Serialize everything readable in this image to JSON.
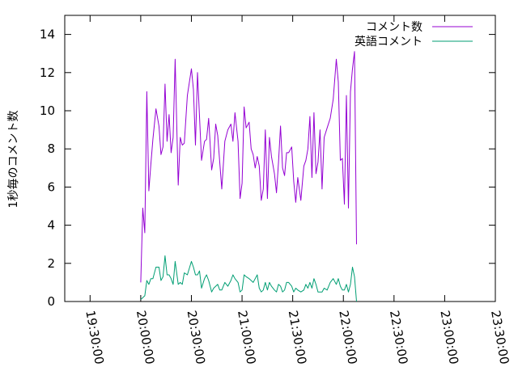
{
  "chart_data": {
    "type": "line",
    "title": "",
    "xlabel": "",
    "ylabel": "1秒毎のコメント数",
    "ylim": [
      0,
      15
    ],
    "yticks": [
      0,
      2,
      4,
      6,
      8,
      10,
      12,
      14
    ],
    "xticks": [
      "19:30:00",
      "20:00:00",
      "20:30:00",
      "21:00:00",
      "21:30:00",
      "22:00:00",
      "22:30:00",
      "23:00:00",
      "23:30:00"
    ],
    "xtick_hours": [
      19.5,
      20.0,
      20.5,
      21.0,
      21.5,
      22.0,
      22.5,
      23.0,
      23.5
    ],
    "xlim_hours": [
      19.25,
      23.5
    ],
    "legend_position": "top-right",
    "grid": false,
    "series": [
      {
        "name": "コメント数",
        "color": "#9400d3",
        "points": [
          [
            20.0,
            1.0
          ],
          [
            20.02,
            4.9
          ],
          [
            20.04,
            3.6
          ],
          [
            20.06,
            11.0
          ],
          [
            20.08,
            5.8
          ],
          [
            20.1,
            7.2
          ],
          [
            20.12,
            8.5
          ],
          [
            20.15,
            10.1
          ],
          [
            20.18,
            9.2
          ],
          [
            20.2,
            7.7
          ],
          [
            20.22,
            8.1
          ],
          [
            20.24,
            11.4
          ],
          [
            20.26,
            8.4
          ],
          [
            20.28,
            9.8
          ],
          [
            20.3,
            7.8
          ],
          [
            20.32,
            8.6
          ],
          [
            20.34,
            12.7
          ],
          [
            20.37,
            6.1
          ],
          [
            20.39,
            8.6
          ],
          [
            20.41,
            8.2
          ],
          [
            20.43,
            8.3
          ],
          [
            20.46,
            10.8
          ],
          [
            20.5,
            12.2
          ],
          [
            20.52,
            11.1
          ],
          [
            20.54,
            8.2
          ],
          [
            20.56,
            12.0
          ],
          [
            20.58,
            9.7
          ],
          [
            20.6,
            7.4
          ],
          [
            20.63,
            8.4
          ],
          [
            20.65,
            8.5
          ],
          [
            20.67,
            9.6
          ],
          [
            20.7,
            6.9
          ],
          [
            20.72,
            7.5
          ],
          [
            20.74,
            9.3
          ],
          [
            20.76,
            8.7
          ],
          [
            20.78,
            7.3
          ],
          [
            20.8,
            5.9
          ],
          [
            20.83,
            8.4
          ],
          [
            20.86,
            9.0
          ],
          [
            20.89,
            9.3
          ],
          [
            20.91,
            8.4
          ],
          [
            20.93,
            9.9
          ],
          [
            20.96,
            8.4
          ],
          [
            20.98,
            5.4
          ],
          [
            21.0,
            6.2
          ],
          [
            21.02,
            10.2
          ],
          [
            21.04,
            9.1
          ],
          [
            21.07,
            9.4
          ],
          [
            21.09,
            8.0
          ],
          [
            21.11,
            7.7
          ],
          [
            21.13,
            7.0
          ],
          [
            21.15,
            7.6
          ],
          [
            21.17,
            7.1
          ],
          [
            21.19,
            5.3
          ],
          [
            21.21,
            5.9
          ],
          [
            21.23,
            9.0
          ],
          [
            21.25,
            5.4
          ],
          [
            21.27,
            8.6
          ],
          [
            21.29,
            7.6
          ],
          [
            21.32,
            6.7
          ],
          [
            21.34,
            5.7
          ],
          [
            21.36,
            7.3
          ],
          [
            21.38,
            9.2
          ],
          [
            21.4,
            7.0
          ],
          [
            21.42,
            6.6
          ],
          [
            21.44,
            7.8
          ],
          [
            21.46,
            7.8
          ],
          [
            21.49,
            8.1
          ],
          [
            21.51,
            6.3
          ],
          [
            21.53,
            5.2
          ],
          [
            21.55,
            6.5
          ],
          [
            21.58,
            5.3
          ],
          [
            21.61,
            7.1
          ],
          [
            21.63,
            7.4
          ],
          [
            21.65,
            8.0
          ],
          [
            21.67,
            9.7
          ],
          [
            21.69,
            6.5
          ],
          [
            21.71,
            9.9
          ],
          [
            21.73,
            6.7
          ],
          [
            21.75,
            7.3
          ],
          [
            21.77,
            9.0
          ],
          [
            21.79,
            5.9
          ],
          [
            21.81,
            8.6
          ],
          [
            21.84,
            9.1
          ],
          [
            21.87,
            9.6
          ],
          [
            21.9,
            10.6
          ],
          [
            21.93,
            12.7
          ],
          [
            21.95,
            11.5
          ],
          [
            21.97,
            7.4
          ],
          [
            21.99,
            7.5
          ],
          [
            22.01,
            5.1
          ],
          [
            22.03,
            10.8
          ],
          [
            22.05,
            4.9
          ],
          [
            22.07,
            11.0
          ],
          [
            22.09,
            12.2
          ],
          [
            22.11,
            13.1
          ],
          [
            22.13,
            3.0
          ]
        ]
      },
      {
        "name": "英語コメント",
        "color": "#009e73",
        "points": [
          [
            20.0,
            0.1
          ],
          [
            20.02,
            0.2
          ],
          [
            20.04,
            0.3
          ],
          [
            20.06,
            1.1
          ],
          [
            20.08,
            0.9
          ],
          [
            20.1,
            1.2
          ],
          [
            20.12,
            1.2
          ],
          [
            20.15,
            1.8
          ],
          [
            20.18,
            1.8
          ],
          [
            20.2,
            1.1
          ],
          [
            20.22,
            1.3
          ],
          [
            20.24,
            2.4
          ],
          [
            20.26,
            1.4
          ],
          [
            20.28,
            1.4
          ],
          [
            20.3,
            1.2
          ],
          [
            20.32,
            0.9
          ],
          [
            20.34,
            2.1
          ],
          [
            20.37,
            0.9
          ],
          [
            20.39,
            1.0
          ],
          [
            20.41,
            0.9
          ],
          [
            20.43,
            1.5
          ],
          [
            20.46,
            1.4
          ],
          [
            20.5,
            2.1
          ],
          [
            20.52,
            1.8
          ],
          [
            20.54,
            1.4
          ],
          [
            20.56,
            1.4
          ],
          [
            20.58,
            1.6
          ],
          [
            20.6,
            0.7
          ],
          [
            20.63,
            1.2
          ],
          [
            20.65,
            1.4
          ],
          [
            20.67,
            1.1
          ],
          [
            20.7,
            0.5
          ],
          [
            20.72,
            0.7
          ],
          [
            20.74,
            0.8
          ],
          [
            20.76,
            0.9
          ],
          [
            20.78,
            0.6
          ],
          [
            20.8,
            0.6
          ],
          [
            20.83,
            1.0
          ],
          [
            20.86,
            0.8
          ],
          [
            20.89,
            1.1
          ],
          [
            20.91,
            1.4
          ],
          [
            20.93,
            1.2
          ],
          [
            20.96,
            1.0
          ],
          [
            20.98,
            0.5
          ],
          [
            21.0,
            0.6
          ],
          [
            21.02,
            1.4
          ],
          [
            21.04,
            1.3
          ],
          [
            21.07,
            1.2
          ],
          [
            21.09,
            1.1
          ],
          [
            21.11,
            1.0
          ],
          [
            21.13,
            1.2
          ],
          [
            21.15,
            1.4
          ],
          [
            21.17,
            0.7
          ],
          [
            21.19,
            0.5
          ],
          [
            21.21,
            0.6
          ],
          [
            21.23,
            1.0
          ],
          [
            21.25,
            0.6
          ],
          [
            21.27,
            1.0
          ],
          [
            21.29,
            0.8
          ],
          [
            21.32,
            0.6
          ],
          [
            21.34,
            0.5
          ],
          [
            21.36,
            0.9
          ],
          [
            21.38,
            0.8
          ],
          [
            21.4,
            0.5
          ],
          [
            21.42,
            0.6
          ],
          [
            21.44,
            1.0
          ],
          [
            21.46,
            1.0
          ],
          [
            21.49,
            0.8
          ],
          [
            21.51,
            0.5
          ],
          [
            21.53,
            0.7
          ],
          [
            21.55,
            0.6
          ],
          [
            21.58,
            0.5
          ],
          [
            21.61,
            0.6
          ],
          [
            21.63,
            0.9
          ],
          [
            21.65,
            0.7
          ],
          [
            21.67,
            1.0
          ],
          [
            21.69,
            0.7
          ],
          [
            21.71,
            1.2
          ],
          [
            21.73,
            0.9
          ],
          [
            21.75,
            0.5
          ],
          [
            21.77,
            0.5
          ],
          [
            21.79,
            0.5
          ],
          [
            21.81,
            0.7
          ],
          [
            21.84,
            0.6
          ],
          [
            21.87,
            1.0
          ],
          [
            21.9,
            1.2
          ],
          [
            21.93,
            0.9
          ],
          [
            21.95,
            1.2
          ],
          [
            21.97,
            0.8
          ],
          [
            21.99,
            0.6
          ],
          [
            22.01,
            0.6
          ],
          [
            22.03,
            0.9
          ],
          [
            22.05,
            0.5
          ],
          [
            22.07,
            0.9
          ],
          [
            22.09,
            1.8
          ],
          [
            22.11,
            1.3
          ],
          [
            22.13,
            0.0
          ]
        ]
      }
    ]
  }
}
